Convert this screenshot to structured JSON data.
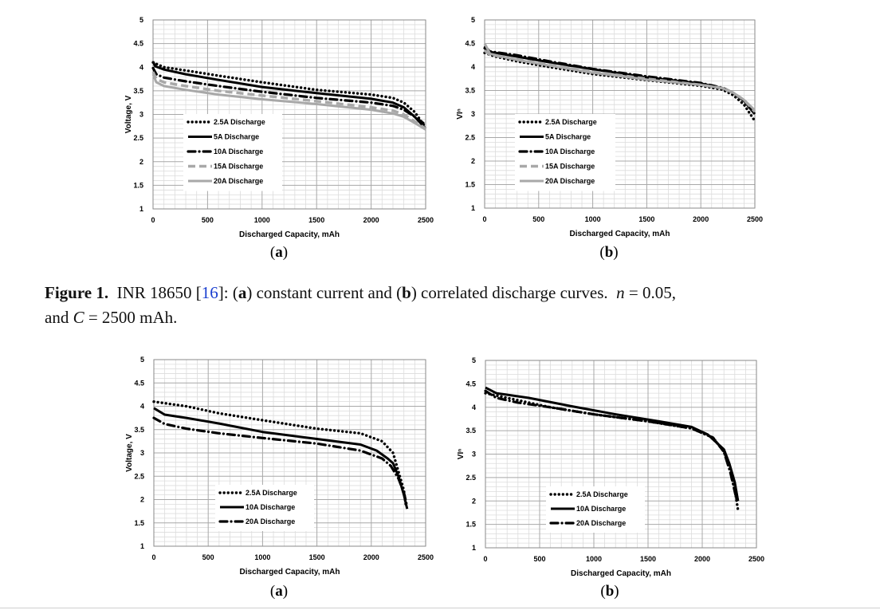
{
  "figure1": {
    "label": "Figure 1.",
    "text_before_ref": "INR 18650 [",
    "ref": "16",
    "text_after_ref": "]: (",
    "part_a_letter": "a",
    "part_a_desc": ") constant current and (",
    "part_b_letter": "b",
    "part_b_desc": ") correlated discharge curves.",
    "n_symbol": "n",
    "n_value": " = 0.05,",
    "line2_prefix": "and ",
    "c_symbol": "C",
    "c_value": " = 2500 mAh."
  },
  "colors": {
    "grid_major": "#a8a8a8",
    "grid_minor": "#dcdcdc",
    "black": "#000000",
    "dark_gray": "#555555",
    "light_gray": "#a8a8a8"
  },
  "chart_data": [
    {
      "id": "top-a",
      "type": "line",
      "panel_label": "(a)",
      "title": "",
      "xlabel": "Discharged Capacity, mAh",
      "ylabel": "Voltage, V",
      "xlim": [
        0,
        2500
      ],
      "ylim": [
        1,
        5
      ],
      "xticks": [
        0,
        500,
        1000,
        1500,
        2000,
        2500
      ],
      "yticks": [
        1,
        1.5,
        2,
        2.5,
        3,
        3.5,
        4,
        4.5,
        5
      ],
      "legend_position": "bottom-left",
      "series": [
        {
          "name": "2.5A Discharge",
          "style": "dotted",
          "color": "#000000",
          "x": [
            0,
            100,
            300,
            600,
            1000,
            1500,
            2000,
            2200,
            2300,
            2400,
            2500
          ],
          "y": [
            4.1,
            4.0,
            3.93,
            3.82,
            3.68,
            3.52,
            3.42,
            3.35,
            3.25,
            3.05,
            2.72
          ]
        },
        {
          "name": "5A Discharge",
          "style": "solid",
          "color": "#000000",
          "x": [
            0,
            20,
            100,
            300,
            600,
            1000,
            1500,
            2000,
            2200,
            2300,
            2400,
            2500
          ],
          "y": [
            4.12,
            4.02,
            3.95,
            3.85,
            3.73,
            3.58,
            3.45,
            3.33,
            3.25,
            3.15,
            2.95,
            2.7
          ]
        },
        {
          "name": "10A Discharge",
          "style": "dashdot",
          "color": "#000000",
          "x": [
            0,
            30,
            100,
            300,
            600,
            1000,
            1500,
            2000,
            2200,
            2300,
            2400,
            2500
          ],
          "y": [
            3.98,
            3.85,
            3.78,
            3.7,
            3.6,
            3.48,
            3.35,
            3.25,
            3.18,
            3.1,
            2.95,
            2.78
          ]
        },
        {
          "name": "15A Discharge",
          "style": "dashed",
          "color": "#a8a8a8",
          "x": [
            0,
            30,
            100,
            300,
            600,
            1000,
            1500,
            2000,
            2200,
            2300,
            2400,
            2500
          ],
          "y": [
            3.9,
            3.75,
            3.68,
            3.6,
            3.5,
            3.4,
            3.28,
            3.15,
            3.08,
            3.0,
            2.85,
            2.7
          ]
        },
        {
          "name": "20A Discharge",
          "style": "solid",
          "color": "#a8a8a8",
          "x": [
            0,
            30,
            100,
            300,
            600,
            1000,
            1500,
            2000,
            2200,
            2300,
            2400,
            2500
          ],
          "y": [
            3.85,
            3.68,
            3.6,
            3.52,
            3.42,
            3.32,
            3.22,
            3.1,
            3.02,
            2.95,
            2.82,
            2.68
          ]
        }
      ]
    },
    {
      "id": "top-b",
      "type": "line",
      "panel_label": "(b)",
      "title": "",
      "xlabel": "Discharged Capacity, mAh",
      "ylabel": "VIⁿ",
      "xlim": [
        0,
        2500
      ],
      "ylim": [
        1,
        5
      ],
      "xticks": [
        0,
        500,
        1000,
        1500,
        2000,
        2500
      ],
      "yticks": [
        1,
        1.5,
        2,
        2.5,
        3,
        3.5,
        4,
        4.5,
        5
      ],
      "legend_position": "bottom-left",
      "series": [
        {
          "name": "2.5A Discharge",
          "style": "dotted",
          "color": "#000000",
          "x": [
            0,
            100,
            300,
            600,
            1000,
            1500,
            2000,
            2200,
            2300,
            2400,
            2500
          ],
          "y": [
            4.3,
            4.22,
            4.12,
            4.0,
            3.85,
            3.72,
            3.6,
            3.52,
            3.4,
            3.2,
            2.85
          ]
        },
        {
          "name": "5A Discharge",
          "style": "solid",
          "color": "#000000",
          "x": [
            0,
            50,
            300,
            600,
            1000,
            1500,
            2000,
            2200,
            2300,
            2400,
            2500
          ],
          "y": [
            4.45,
            4.32,
            4.22,
            4.1,
            3.95,
            3.78,
            3.65,
            3.55,
            3.45,
            3.28,
            3.0
          ]
        },
        {
          "name": "10A Discharge",
          "style": "dashdot",
          "color": "#000000",
          "x": [
            0,
            50,
            300,
            600,
            1000,
            1500,
            2000,
            2200,
            2300,
            2400,
            2500
          ],
          "y": [
            4.4,
            4.33,
            4.25,
            4.12,
            3.96,
            3.8,
            3.66,
            3.56,
            3.45,
            3.28,
            3.0
          ]
        },
        {
          "name": "15A Discharge",
          "style": "dashed",
          "color": "#a8a8a8",
          "x": [
            0,
            50,
            300,
            600,
            1000,
            1500,
            2000,
            2200,
            2300,
            2400,
            2500
          ],
          "y": [
            4.35,
            4.26,
            4.16,
            4.05,
            3.9,
            3.75,
            3.62,
            3.55,
            3.45,
            3.3,
            3.05
          ]
        },
        {
          "name": "20A Discharge",
          "style": "solid",
          "color": "#a8a8a8",
          "x": [
            0,
            50,
            300,
            600,
            1000,
            1500,
            2000,
            2200,
            2300,
            2400,
            2500
          ],
          "y": [
            4.5,
            4.28,
            4.15,
            4.03,
            3.88,
            3.73,
            3.62,
            3.55,
            3.45,
            3.3,
            3.08
          ]
        }
      ]
    },
    {
      "id": "bottom-a",
      "type": "line",
      "panel_label": "(a)",
      "title": "",
      "xlabel": "Discharged Capacity, mAh",
      "ylabel": "Voltage, V",
      "xlim": [
        0,
        2500
      ],
      "ylim": [
        1,
        5
      ],
      "xticks": [
        0,
        500,
        1000,
        1500,
        2000,
        2500
      ],
      "yticks": [
        1,
        1.5,
        2,
        2.5,
        3,
        3.5,
        4,
        4.5,
        5
      ],
      "legend_position": "bottom-center",
      "series": [
        {
          "name": "2.5A Discharge",
          "style": "dotted",
          "color": "#000000",
          "x": [
            0,
            300,
            600,
            1000,
            1500,
            1900,
            2100,
            2200,
            2250,
            2300,
            2320
          ],
          "y": [
            4.1,
            4.0,
            3.85,
            3.7,
            3.52,
            3.42,
            3.25,
            3.0,
            2.6,
            2.2,
            1.85
          ]
        },
        {
          "name": "10A Discharge",
          "style": "solid",
          "color": "#000000",
          "x": [
            0,
            100,
            300,
            600,
            1000,
            1500,
            1900,
            2050,
            2150,
            2200,
            2250,
            2300,
            2330
          ],
          "y": [
            3.96,
            3.82,
            3.75,
            3.63,
            3.45,
            3.3,
            3.18,
            3.05,
            2.88,
            2.78,
            2.5,
            2.1,
            1.8
          ]
        },
        {
          "name": "20A Discharge",
          "style": "dashdot",
          "color": "#000000",
          "x": [
            0,
            100,
            300,
            600,
            1000,
            1500,
            1900,
            2100,
            2180,
            2250,
            2300,
            2330
          ],
          "y": [
            3.75,
            3.62,
            3.52,
            3.42,
            3.32,
            3.2,
            3.05,
            2.88,
            2.72,
            2.45,
            2.15,
            1.85
          ]
        }
      ]
    },
    {
      "id": "bottom-b",
      "type": "line",
      "panel_label": "(b)",
      "title": "",
      "xlabel": "Discharged Capacity, mAh",
      "ylabel": "VIⁿ",
      "xlim": [
        0,
        2500
      ],
      "ylim": [
        1,
        5
      ],
      "xticks": [
        0,
        500,
        1000,
        1500,
        2000,
        2500
      ],
      "yticks": [
        1,
        1.5,
        2,
        2.5,
        3,
        3.5,
        4,
        4.5,
        5
      ],
      "legend_position": "bottom-center",
      "series": [
        {
          "name": "2.5A Discharge",
          "style": "dotted",
          "color": "#000000",
          "x": [
            0,
            300,
            600,
            1000,
            1500,
            1900,
            2100,
            2200,
            2250,
            2300,
            2330
          ],
          "y": [
            4.3,
            4.15,
            4.0,
            3.85,
            3.7,
            3.55,
            3.35,
            3.05,
            2.7,
            2.25,
            1.8
          ]
        },
        {
          "name": "10A Discharge",
          "style": "solid",
          "color": "#000000",
          "x": [
            0,
            100,
            400,
            800,
            1200,
            1600,
            1900,
            2050,
            2200,
            2250,
            2300,
            2330
          ],
          "y": [
            4.42,
            4.3,
            4.2,
            4.02,
            3.85,
            3.7,
            3.58,
            3.42,
            3.1,
            2.8,
            2.4,
            2.0
          ]
        },
        {
          "name": "20A Discharge",
          "style": "dashdot",
          "color": "#000000",
          "x": [
            0,
            100,
            300,
            600,
            1000,
            1500,
            1900,
            2100,
            2200,
            2260,
            2320
          ],
          "y": [
            4.35,
            4.2,
            4.1,
            4.0,
            3.85,
            3.7,
            3.55,
            3.35,
            3.05,
            2.6,
            2.0
          ]
        }
      ]
    }
  ]
}
